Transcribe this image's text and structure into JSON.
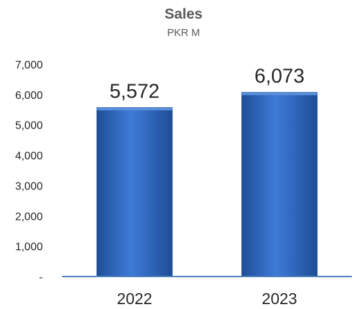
{
  "chart_data": {
    "type": "bar",
    "title": "Sales",
    "subtitle": "PKR M",
    "categories": [
      "2022",
      "2023"
    ],
    "values": [
      5572,
      6073
    ],
    "data_labels": [
      "5,572",
      "6,073"
    ],
    "ylim": [
      0,
      7000
    ],
    "yticks": [
      0,
      1000,
      2000,
      3000,
      4000,
      5000,
      6000,
      7000
    ],
    "ytick_labels": [
      "-",
      "1,000",
      "2,000",
      "3,000",
      "4,000",
      "5,000",
      "6,000",
      "7,000"
    ],
    "xlabel": "",
    "ylabel": "",
    "grid": false,
    "legend": "none",
    "colors": {
      "bar_light": "#5B8FDB",
      "bar_main": "#2E6BC6",
      "bar_dark": "#1F4E96",
      "axis": "#4F81BD"
    }
  }
}
